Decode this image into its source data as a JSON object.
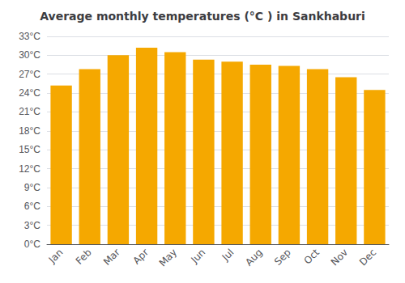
{
  "chart_data": {
    "type": "bar",
    "title": "Average monthly temperatures (°C ) in Sankhaburi",
    "categories": [
      "Jan",
      "Feb",
      "Mar",
      "Apr",
      "May",
      "Jun",
      "Jul",
      "Aug",
      "Sep",
      "Oct",
      "Nov",
      "Dec"
    ],
    "values": [
      25.2,
      27.8,
      30.0,
      31.2,
      30.5,
      29.3,
      29.0,
      28.5,
      28.3,
      27.8,
      26.5,
      24.5
    ],
    "color": "#F5A800",
    "ylim": [
      0,
      33
    ],
    "yticks": [
      {
        "value": 0,
        "label": "0°C"
      },
      {
        "value": 3,
        "label": "3°C"
      },
      {
        "value": 6,
        "label": "6°C"
      },
      {
        "value": 9,
        "label": "9°C"
      },
      {
        "value": 12,
        "label": "12°C"
      },
      {
        "value": 15,
        "label": "15°C"
      },
      {
        "value": 18,
        "label": "18°C"
      },
      {
        "value": 21,
        "label": "21°C"
      },
      {
        "value": 24,
        "label": "24°C"
      },
      {
        "value": 27,
        "label": "27°C"
      },
      {
        "value": 30,
        "label": "30°C"
      },
      {
        "value": 33,
        "label": "33°C"
      }
    ],
    "grid": true
  }
}
